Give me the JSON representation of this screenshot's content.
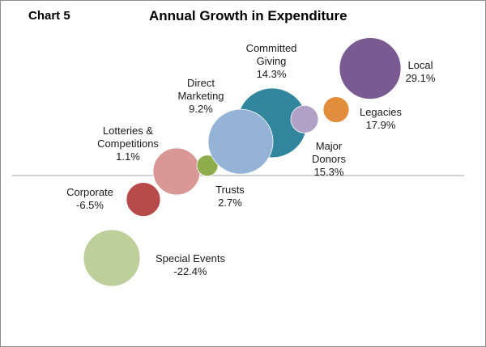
{
  "chart_number": "Chart 5",
  "chart_data": {
    "type": "bubble",
    "title": "Annual Growth in Expenditure",
    "xlabel": "",
    "ylabel": "",
    "grid": false,
    "legend": "none",
    "y_axis_line": true,
    "series": [
      {
        "name": "Special Events",
        "value_label": "-22.4%",
        "y": -22.4,
        "x_rank": 1,
        "color": "#bdd09b"
      },
      {
        "name": "Corporate",
        "value_label": "-6.5%",
        "y": -6.5,
        "x_rank": 2,
        "color": "#b94a4a"
      },
      {
        "name": "Lotteries & Competitions",
        "value_label": "1.1%",
        "y": 1.1,
        "x_rank": 3,
        "color": "#d99795"
      },
      {
        "name": "Trusts",
        "value_label": "2.7%",
        "y": 2.7,
        "x_rank": 4,
        "color": "#8fad4c"
      },
      {
        "name": "Committed Giving",
        "value_label": "14.3%",
        "y": 14.3,
        "x_rank": 5,
        "color": "#31859c"
      },
      {
        "name": "Direct Marketing",
        "value_label": "9.2%",
        "y": 9.2,
        "x_rank": 6,
        "color": "#95b2d7"
      },
      {
        "name": "Major Donors",
        "value_label": "15.3%",
        "y": 15.3,
        "x_rank": 7,
        "color": "#b2a1c7"
      },
      {
        "name": "Legacies",
        "value_label": "17.9%",
        "y": 17.9,
        "x_rank": 8,
        "color": "#e28d3c"
      },
      {
        "name": "Local",
        "value_label": "29.1%",
        "y": 29.1,
        "x_rank": 9,
        "color": "#7a5b91"
      }
    ]
  }
}
